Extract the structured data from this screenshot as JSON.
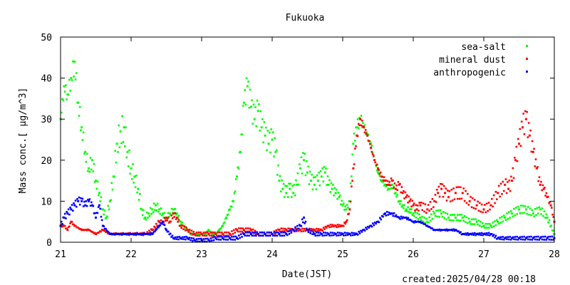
{
  "chart_data": {
    "type": "scatter",
    "title": "Fukuoka",
    "xlabel": "Date(JST)",
    "ylabel": "Mass conc.[ μg/m^3]",
    "xlim": [
      21,
      28
    ],
    "ylim": [
      0,
      50
    ],
    "x_ticks": [
      21,
      22,
      23,
      24,
      25,
      26,
      27,
      28
    ],
    "y_ticks": [
      0,
      10,
      20,
      30,
      40,
      50
    ],
    "grid": false,
    "legend_position": "top-right",
    "created_text": "created:2025/04/28 00:18",
    "series": [
      {
        "name": "sea-salt",
        "color": "#00ff00",
        "x": [
          21.0,
          21.05,
          21.1,
          21.15,
          21.2,
          21.25,
          21.3,
          21.35,
          21.4,
          21.45,
          21.5,
          21.55,
          21.6,
          21.65,
          21.7,
          21.75,
          21.8,
          21.85,
          21.9,
          21.95,
          22.0,
          22.05,
          22.1,
          22.15,
          22.2,
          22.25,
          22.3,
          22.35,
          22.4,
          22.45,
          22.5,
          22.55,
          22.6,
          22.65,
          22.7,
          22.75,
          22.8,
          22.85,
          22.9,
          22.95,
          23.0,
          23.05,
          23.1,
          23.15,
          23.2,
          23.25,
          23.3,
          23.35,
          23.4,
          23.45,
          23.5,
          23.55,
          23.6,
          23.65,
          23.7,
          23.75,
          23.8,
          23.85,
          23.9,
          23.95,
          24.0,
          24.05,
          24.1,
          24.15,
          24.2,
          24.25,
          24.3,
          24.35,
          24.4,
          24.45,
          24.5,
          24.55,
          24.6,
          24.65,
          24.7,
          24.75,
          24.8,
          24.85,
          24.9,
          24.95,
          25.0,
          25.05,
          25.1,
          25.15,
          25.2,
          25.25,
          25.3,
          25.35,
          25.4,
          25.45,
          25.5,
          25.55,
          25.6,
          25.65,
          25.7,
          25.75,
          25.8,
          25.85,
          25.9,
          25.95,
          26.0,
          26.1,
          26.2,
          26.3,
          26.4,
          26.5,
          26.6,
          26.7,
          26.8,
          26.9,
          27.0,
          27.1,
          27.2,
          27.3,
          27.4,
          27.5,
          27.6,
          27.7,
          27.8,
          27.9,
          28.0
        ],
        "y": [
          30,
          38,
          36,
          40,
          44,
          34,
          28,
          22,
          18,
          20,
          15,
          12,
          8,
          6,
          10,
          16,
          24,
          27,
          28,
          22,
          18,
          16,
          13,
          8,
          6,
          7,
          8,
          9,
          8,
          7,
          6,
          7,
          8,
          7,
          5,
          4,
          3,
          2,
          2,
          2,
          2,
          2,
          3,
          2,
          2,
          3,
          4,
          6,
          8,
          10,
          16,
          22,
          34,
          38,
          33,
          30,
          32,
          28,
          26,
          24,
          25,
          22,
          15,
          13,
          12,
          13,
          12,
          14,
          18,
          20,
          17,
          15,
          14,
          15,
          16,
          17,
          14,
          13,
          12,
          11,
          9,
          8,
          10,
          24,
          28,
          30,
          28,
          26,
          24,
          20,
          17,
          15,
          14,
          13,
          14,
          12,
          10,
          9,
          8,
          8,
          7,
          6,
          5,
          7,
          7,
          6,
          6,
          6,
          5,
          5,
          4,
          4,
          5,
          6,
          7,
          8,
          8,
          7,
          8,
          6,
          2
        ]
      },
      {
        "name": "mineral dust",
        "color": "#ff0000",
        "x": [
          21.0,
          21.05,
          21.1,
          21.15,
          21.2,
          21.3,
          21.4,
          21.5,
          21.6,
          21.7,
          21.8,
          21.9,
          22.0,
          22.1,
          22.2,
          22.3,
          22.4,
          22.45,
          22.5,
          22.55,
          22.6,
          22.65,
          22.7,
          22.8,
          22.9,
          23.0,
          23.1,
          23.2,
          23.3,
          23.4,
          23.5,
          23.6,
          23.7,
          23.8,
          23.9,
          24.0,
          24.1,
          24.2,
          24.3,
          24.4,
          24.5,
          24.6,
          24.7,
          24.8,
          24.9,
          25.0,
          25.05,
          25.1,
          25.15,
          25.2,
          25.25,
          25.3,
          25.35,
          25.4,
          25.45,
          25.5,
          25.55,
          25.6,
          25.65,
          25.7,
          25.75,
          25.8,
          25.85,
          25.9,
          25.95,
          26.0,
          26.05,
          26.1,
          26.2,
          26.3,
          26.35,
          26.4,
          26.45,
          26.5,
          26.6,
          26.7,
          26.8,
          26.9,
          27.0,
          27.1,
          27.2,
          27.3,
          27.35,
          27.4,
          27.45,
          27.5,
          27.55,
          27.6,
          27.65,
          27.7,
          27.75,
          27.8,
          27.85,
          27.9,
          27.95,
          28.0
        ],
        "y": [
          4,
          4,
          3,
          5,
          4,
          3,
          3,
          2,
          3,
          2,
          2,
          2,
          2,
          2,
          2,
          3,
          5,
          5,
          6,
          5,
          7,
          6,
          4,
          3,
          2,
          2,
          2,
          2,
          2,
          2,
          3,
          3,
          3,
          2,
          2,
          2,
          3,
          3,
          3,
          3,
          3,
          3,
          3,
          4,
          4,
          4,
          5,
          8,
          18,
          26,
          30,
          28,
          26,
          23,
          20,
          18,
          16,
          15,
          14,
          15,
          13,
          14,
          12,
          11,
          10,
          9,
          8,
          9,
          8,
          10,
          12,
          13,
          12,
          11,
          12,
          12,
          10,
          9,
          8,
          9,
          12,
          14,
          13,
          15,
          20,
          24,
          28,
          30,
          26,
          22,
          18,
          14,
          13,
          11,
          9,
          5
        ]
      },
      {
        "name": "anthropogenic",
        "color": "#0000ff",
        "x": [
          21.0,
          21.05,
          21.1,
          21.15,
          21.2,
          21.25,
          21.3,
          21.35,
          21.4,
          21.45,
          21.5,
          21.55,
          21.6,
          21.7,
          21.8,
          21.9,
          22.0,
          22.1,
          22.2,
          22.3,
          22.35,
          22.4,
          22.45,
          22.5,
          22.6,
          22.7,
          22.8,
          22.9,
          23.0,
          23.1,
          23.2,
          23.3,
          23.4,
          23.5,
          23.6,
          23.7,
          23.8,
          23.9,
          24.0,
          24.1,
          24.2,
          24.3,
          24.4,
          24.45,
          24.5,
          24.6,
          24.7,
          24.8,
          24.9,
          25.0,
          25.1,
          25.2,
          25.3,
          25.4,
          25.5,
          25.6,
          25.7,
          25.8,
          25.9,
          26.0,
          26.1,
          26.2,
          26.3,
          26.4,
          26.5,
          26.6,
          26.7,
          26.8,
          26.9,
          27.0,
          27.1,
          27.2,
          27.3,
          27.4,
          27.5,
          27.6,
          27.7,
          27.8,
          27.9,
          28.0
        ],
        "y": [
          4,
          6,
          7,
          8,
          9,
          10,
          10,
          9,
          10,
          9,
          6,
          9,
          4,
          2,
          2,
          2,
          2,
          2,
          2,
          2,
          3,
          4,
          5,
          3,
          1,
          1,
          1,
          0.5,
          0.5,
          0.5,
          1,
          1,
          1,
          1,
          2,
          2,
          2,
          2,
          2,
          2,
          2,
          3,
          4,
          6,
          3,
          2,
          2,
          2,
          2,
          2,
          2,
          2,
          3,
          4,
          5,
          7,
          7,
          6,
          6,
          5,
          5,
          4,
          3,
          3,
          3,
          3,
          2,
          2,
          2,
          2,
          2,
          1,
          1,
          1,
          1,
          1,
          1,
          1,
          1,
          1
        ]
      }
    ]
  }
}
